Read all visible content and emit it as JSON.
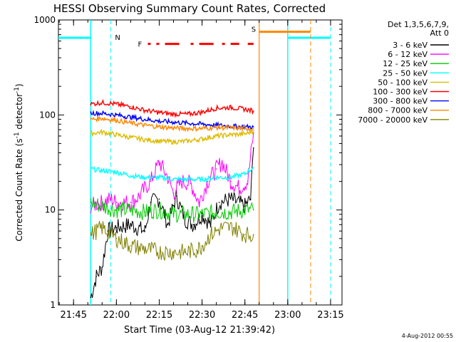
{
  "chart_data": {
    "type": "line",
    "title": "HESSI Observing Summary Count Rates, Corrected",
    "xlabel": "Start Time (03-Aug-12 21:39:42)",
    "ylabel": "Corrected Count Rate (s⁻¹ detector⁻¹)",
    "ylabel_parts": {
      "main": "Corrected Count Rate (s",
      "sup1": "-1",
      "mid": " detector",
      "sup2": "-1",
      "end": ")"
    },
    "yscale": "log",
    "ylim": [
      1,
      1000
    ],
    "xlim": [
      "21:39:42",
      "23:19:00"
    ],
    "x_ticks": [
      "21:45",
      "22:00",
      "22:15",
      "22:30",
      "22:45",
      "23:00",
      "23:15"
    ],
    "y_ticks": [
      "1",
      "10",
      "100",
      "1000"
    ],
    "legend_header": [
      "Det 1,3,5,6,7,9,",
      "Att 0"
    ],
    "legend_position": "right",
    "footer": "4-Aug-2012 00:55",
    "series": [
      {
        "name": "3 - 6 keV",
        "color": "#000000",
        "x": [
          "21:51",
          "21:53",
          "21:55",
          "21:57",
          "22:00",
          "22:05",
          "22:10",
          "22:12",
          "22:15",
          "22:18",
          "22:21",
          "22:24",
          "22:27",
          "22:30",
          "22:33",
          "22:36",
          "22:40",
          "22:45",
          "22:47",
          "22:48"
        ],
        "y": [
          1.2,
          2,
          2.5,
          6,
          6.5,
          7,
          6,
          12,
          13,
          7,
          14,
          8,
          7,
          9,
          7,
          12,
          13,
          11,
          13,
          45
        ]
      },
      {
        "name": "6 - 12 keV",
        "color": "#ff00ff",
        "x": [
          "21:51",
          "21:55",
          "21:58",
          "22:00",
          "22:05",
          "22:08",
          "22:12",
          "22:15",
          "22:18",
          "22:20",
          "22:23",
          "22:26",
          "22:29",
          "22:32",
          "22:35",
          "22:37",
          "22:40",
          "22:43",
          "22:46",
          "22:48"
        ],
        "y": [
          11,
          12,
          13,
          12,
          12,
          14,
          20,
          32,
          22,
          15,
          20,
          19,
          12,
          20,
          27,
          32,
          20,
          17,
          20,
          65
        ]
      },
      {
        "name": "12 - 25 keV",
        "color": "#00cc00",
        "x": [
          "21:51",
          "21:55",
          "22:00",
          "22:05",
          "22:10",
          "22:15",
          "22:20",
          "22:25",
          "22:30",
          "22:35",
          "22:40",
          "22:45",
          "22:48"
        ],
        "y": [
          12,
          11,
          10,
          10,
          9.5,
          10,
          9,
          9,
          9,
          9.5,
          9.5,
          10,
          10
        ]
      },
      {
        "name": "25 - 50 keV",
        "color": "#00ffff",
        "x": [
          "21:51",
          "21:55",
          "22:00",
          "22:05",
          "22:10",
          "22:15",
          "22:20",
          "22:25",
          "22:30",
          "22:35",
          "22:40",
          "22:45",
          "22:48"
        ],
        "y": [
          27,
          26,
          25,
          23,
          22,
          22,
          21,
          21,
          21,
          22,
          22,
          24,
          28
        ]
      },
      {
        "name": "50 - 100 keV",
        "color": "#ddbb00",
        "x": [
          "21:51",
          "21:55",
          "22:00",
          "22:05",
          "22:10",
          "22:15",
          "22:20",
          "22:25",
          "22:30",
          "22:35",
          "22:40",
          "22:45",
          "22:48"
        ],
        "y": [
          64,
          66,
          62,
          58,
          55,
          53,
          52,
          53,
          56,
          60,
          62,
          63,
          68
        ]
      },
      {
        "name": "100 - 300 keV",
        "color": "#ff0000",
        "x": [
          "21:51",
          "21:55",
          "22:00",
          "22:05",
          "22:10",
          "22:15",
          "22:20",
          "22:25",
          "22:30",
          "22:35",
          "22:40",
          "22:45",
          "22:48"
        ],
        "y": [
          130,
          135,
          130,
          122,
          112,
          106,
          102,
          102,
          107,
          118,
          120,
          115,
          110
        ]
      },
      {
        "name": "300 - 800 keV",
        "color": "#0000ff",
        "x": [
          "21:51",
          "21:55",
          "22:00",
          "22:05",
          "22:10",
          "22:15",
          "22:20",
          "22:25",
          "22:30",
          "22:35",
          "22:40",
          "22:45",
          "22:48"
        ],
        "y": [
          105,
          104,
          100,
          95,
          90,
          86,
          84,
          82,
          80,
          78,
          76,
          75,
          75
        ]
      },
      {
        "name": "800 - 7000 keV",
        "color": "#ff8800",
        "x": [
          "21:51",
          "21:55",
          "22:00",
          "22:05",
          "22:10",
          "22:15",
          "22:20",
          "22:25",
          "22:30",
          "22:35",
          "22:40",
          "22:45",
          "22:48"
        ],
        "y": [
          90,
          92,
          88,
          82,
          78,
          75,
          73,
          72,
          72,
          74,
          73,
          72,
          72
        ]
      },
      {
        "name": "7000 - 20000 keV",
        "color": "#808000",
        "x": [
          "21:51",
          "21:55",
          "22:00",
          "22:05",
          "22:08",
          "22:12",
          "22:16",
          "22:20",
          "22:24",
          "22:28",
          "22:30",
          "22:33",
          "22:37",
          "22:41",
          "22:45",
          "22:48"
        ],
        "y": [
          5.5,
          6.5,
          5.0,
          4.2,
          4.0,
          3.8,
          3.6,
          3.6,
          3.6,
          3.8,
          4.2,
          5.5,
          6.5,
          6.5,
          5.5,
          5.5
        ]
      }
    ],
    "annotations": {
      "N": {
        "label": "N",
        "color": "#00ffff",
        "night_start": "21:39:42",
        "night_end": "21:51:00",
        "night_level": 650,
        "marker_x": "21:58",
        "night2_start": "23:00:00",
        "night2_end": "23:15:00",
        "night2_marker_x": "23:15"
      },
      "S": {
        "label": "S",
        "color": "#ff8800",
        "saa_start": "22:50:00",
        "saa_end": "23:08:00",
        "saa_level": 750,
        "marker_x": "23:08"
      },
      "F": {
        "label": "F",
        "color": "#ff0000",
        "flare_level": 560,
        "segments": [
          [
            "22:11",
            "22:12"
          ],
          [
            "22:14",
            "22:15"
          ],
          [
            "22:17",
            "22:22"
          ],
          [
            "22:26",
            "22:27"
          ],
          [
            "22:29",
            "22:34"
          ],
          [
            "22:37",
            "22:38"
          ],
          [
            "22:40",
            "22:43"
          ],
          [
            "22:46",
            "22:48"
          ]
        ]
      }
    }
  }
}
